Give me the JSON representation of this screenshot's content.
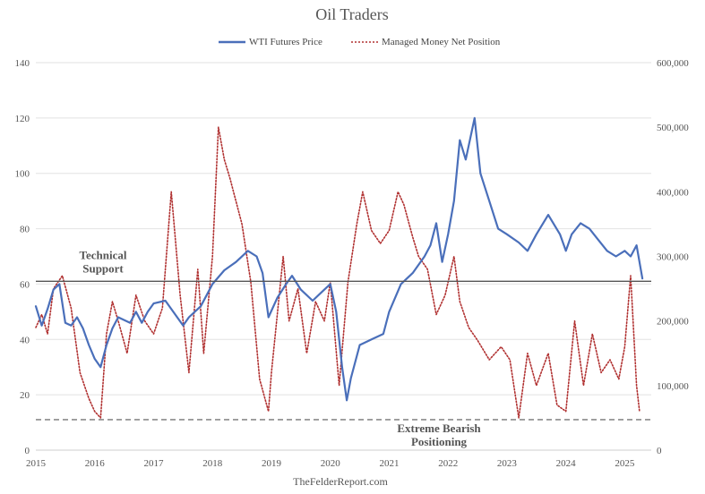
{
  "chart_data": {
    "type": "line",
    "title": "Oil Traders",
    "source": "TheFelderReport.com",
    "legend": {
      "placement": "top-center"
    },
    "grid": true,
    "x_ticks": [
      "2015",
      "2016",
      "2017",
      "2018",
      "2019",
      "2020",
      "2021",
      "2022",
      "2023",
      "2024",
      "2025"
    ],
    "xlim": [
      2015,
      2025.45
    ],
    "y_left": {
      "lim": [
        0,
        140
      ],
      "ticks": [
        "0",
        "20",
        "40",
        "60",
        "80",
        "100",
        "120",
        "140"
      ]
    },
    "y_right": {
      "lim": [
        0,
        600000
      ],
      "ticks": [
        "0",
        "100,000",
        "200,000",
        "300,000",
        "400,000",
        "500,000",
        "600,000"
      ]
    },
    "series": [
      {
        "name": "WTI Futures Price",
        "axis": "left",
        "color": "#4a6fba",
        "style": "solid",
        "x": [
          2015.0,
          2015.1,
          2015.2,
          2015.3,
          2015.4,
          2015.5,
          2015.6,
          2015.7,
          2015.8,
          2015.9,
          2016.0,
          2016.1,
          2016.2,
          2016.3,
          2016.4,
          2016.5,
          2016.6,
          2016.7,
          2016.8,
          2016.9,
          2017.0,
          2017.2,
          2017.4,
          2017.5,
          2017.6,
          2017.8,
          2017.9,
          2018.0,
          2018.2,
          2018.4,
          2018.6,
          2018.75,
          2018.85,
          2018.95,
          2019.1,
          2019.25,
          2019.35,
          2019.5,
          2019.7,
          2019.9,
          2020.0,
          2020.1,
          2020.2,
          2020.28,
          2020.35,
          2020.5,
          2020.7,
          2020.9,
          2021.0,
          2021.2,
          2021.4,
          2021.6,
          2021.7,
          2021.8,
          2021.9,
          2022.0,
          2022.1,
          2022.2,
          2022.3,
          2022.45,
          2022.55,
          2022.7,
          2022.85,
          2023.0,
          2023.2,
          2023.35,
          2023.5,
          2023.7,
          2023.9,
          2024.0,
          2024.1,
          2024.25,
          2024.4,
          2024.55,
          2024.7,
          2024.85,
          2025.0,
          2025.1,
          2025.2,
          2025.3
        ],
        "values": [
          52,
          45,
          51,
          58,
          60,
          46,
          45,
          48,
          44,
          38,
          33,
          30,
          38,
          44,
          48,
          47,
          46,
          50,
          46,
          50,
          53,
          54,
          48,
          45,
          48,
          52,
          56,
          60,
          65,
          68,
          72,
          70,
          64,
          48,
          55,
          60,
          63,
          58,
          54,
          58,
          60,
          50,
          30,
          18,
          26,
          38,
          40,
          42,
          50,
          60,
          64,
          70,
          74,
          82,
          68,
          78,
          90,
          112,
          105,
          120,
          100,
          90,
          80,
          78,
          75,
          72,
          78,
          85,
          78,
          72,
          78,
          82,
          80,
          76,
          72,
          70,
          72,
          70,
          74,
          62
        ]
      },
      {
        "name": "Managed Money Net Position",
        "axis": "right",
        "color": "#b03030",
        "style": "dotted",
        "x": [
          2015.0,
          2015.1,
          2015.2,
          2015.3,
          2015.45,
          2015.6,
          2015.75,
          2015.9,
          2016.0,
          2016.1,
          2016.2,
          2016.3,
          2016.4,
          2016.55,
          2016.7,
          2016.85,
          2017.0,
          2017.15,
          2017.3,
          2017.45,
          2017.6,
          2017.75,
          2017.85,
          2018.0,
          2018.1,
          2018.2,
          2018.3,
          2018.5,
          2018.65,
          2018.8,
          2018.95,
          2019.0,
          2019.2,
          2019.3,
          2019.45,
          2019.6,
          2019.75,
          2019.9,
          2020.0,
          2020.15,
          2020.3,
          2020.45,
          2020.55,
          2020.7,
          2020.85,
          2021.0,
          2021.15,
          2021.25,
          2021.4,
          2021.5,
          2021.65,
          2021.8,
          2021.95,
          2022.1,
          2022.2,
          2022.35,
          2022.5,
          2022.7,
          2022.9,
          2023.05,
          2023.2,
          2023.35,
          2023.5,
          2023.7,
          2023.85,
          2024.0,
          2024.15,
          2024.3,
          2024.45,
          2024.6,
          2024.75,
          2024.9,
          2025.0,
          2025.1,
          2025.2,
          2025.25
        ],
        "values": [
          190000,
          210000,
          180000,
          250000,
          270000,
          220000,
          120000,
          80000,
          60000,
          50000,
          180000,
          230000,
          200000,
          150000,
          240000,
          200000,
          180000,
          220000,
          400000,
          240000,
          120000,
          280000,
          150000,
          300000,
          500000,
          450000,
          420000,
          350000,
          260000,
          110000,
          60000,
          120000,
          300000,
          200000,
          250000,
          150000,
          230000,
          200000,
          260000,
          100000,
          260000,
          350000,
          400000,
          340000,
          320000,
          340000,
          400000,
          380000,
          330000,
          300000,
          280000,
          210000,
          240000,
          300000,
          230000,
          190000,
          170000,
          140000,
          160000,
          140000,
          50000,
          150000,
          100000,
          150000,
          70000,
          60000,
          200000,
          100000,
          180000,
          120000,
          140000,
          110000,
          160000,
          270000,
          100000,
          60000
        ]
      }
    ],
    "annotations": [
      {
        "lines": [
          "Technical",
          "Support"
        ],
        "axis": "left",
        "y": 61,
        "style": "solid"
      },
      {
        "lines": [
          "Extreme Bearish",
          "Positioning"
        ],
        "axis": "left",
        "y": 11,
        "style": "dashed"
      }
    ]
  }
}
